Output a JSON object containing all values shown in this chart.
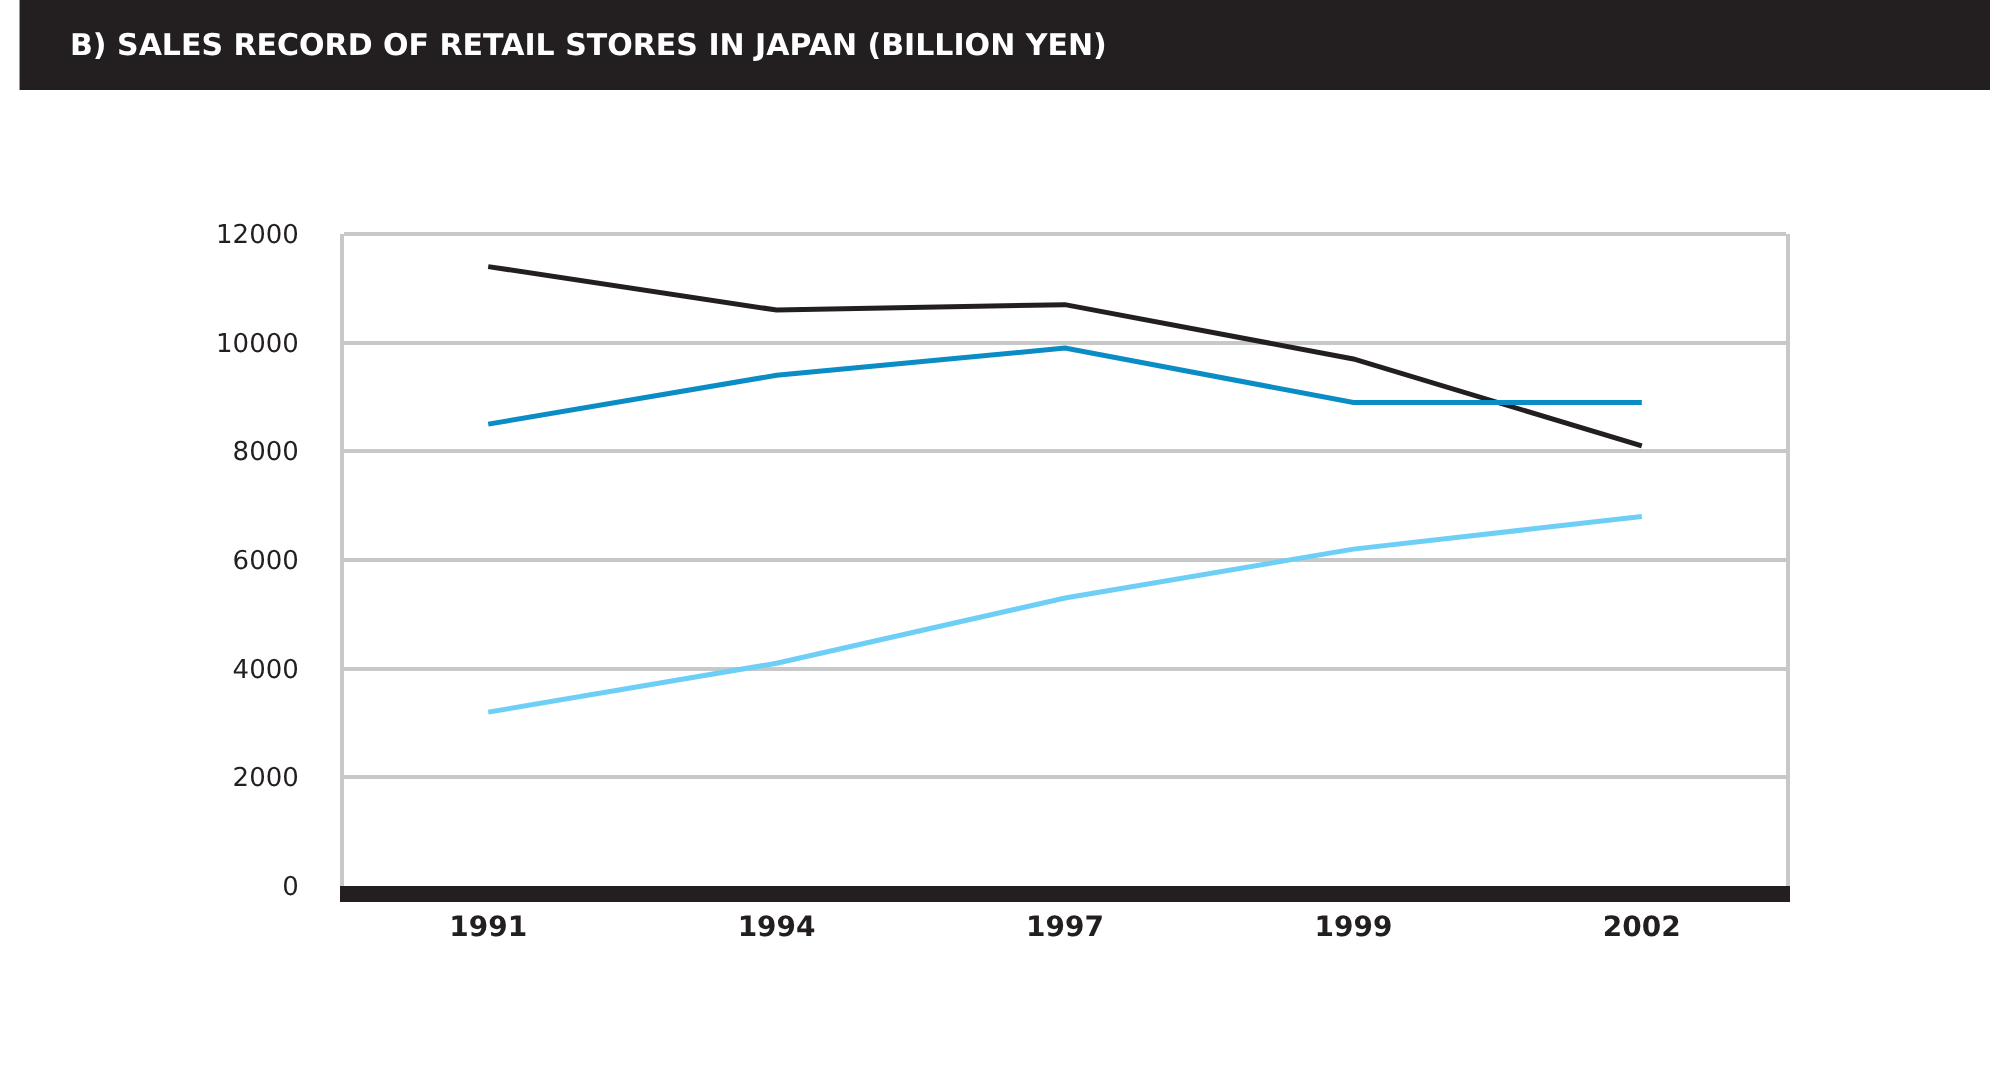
{
  "chart_data": {
    "type": "line",
    "title": "B) SALES RECORD OF RETAIL STORES IN JAPAN (BILLION YEN)",
    "categories": [
      "1991",
      "1994",
      "1997",
      "1999",
      "2002"
    ],
    "series": [
      {
        "color": "#231f20",
        "values": [
          11400,
          10600,
          10700,
          9700,
          8100
        ]
      },
      {
        "color": "#0a8cc4",
        "values": [
          8500,
          9400,
          9900,
          8900,
          8900
        ]
      },
      {
        "color": "#6dcff6",
        "values": [
          3200,
          4100,
          5300,
          6200,
          6800
        ]
      }
    ],
    "ylim": [
      0,
      12000
    ],
    "yticks": [
      0,
      2000,
      4000,
      6000,
      8000,
      10000,
      12000
    ],
    "grid": "y",
    "marker": "none",
    "line_style": "solid"
  }
}
